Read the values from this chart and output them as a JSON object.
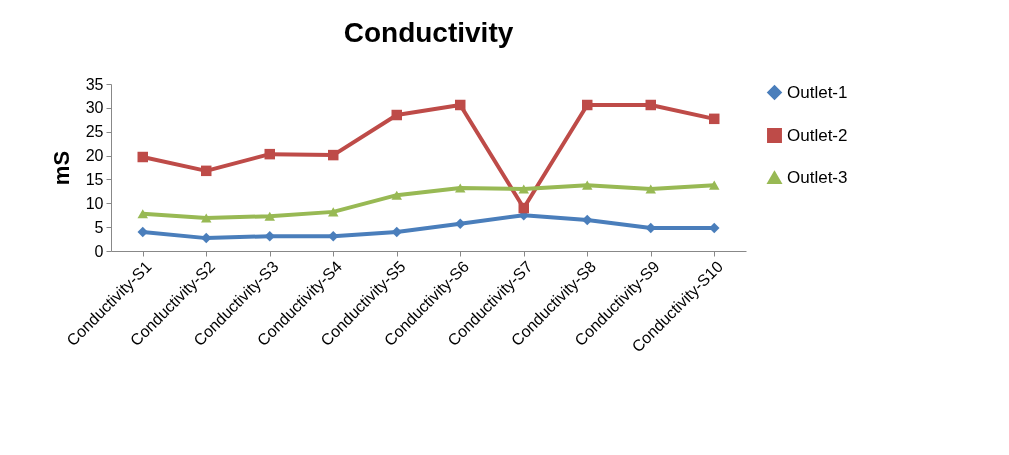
{
  "chart_data": {
    "type": "line",
    "title": "Conductivity",
    "ylabel": "mS",
    "categories": [
      "Conductivity-S1",
      "Conductivity-S2",
      "Conductivity-S3",
      "Conductivity-S4",
      "Conductivity-S5",
      "Conductivity-S6",
      "Conductivity-S7",
      "Conductivity-S8",
      "Conductivity-S9",
      "Conductivity-S10"
    ],
    "series": [
      {
        "name": "Outlet-1",
        "color": "#4a7ebb",
        "marker": "diamond",
        "values": [
          4.0,
          2.7,
          3.1,
          3.1,
          4.0,
          5.7,
          7.5,
          6.5,
          4.8,
          4.8
        ]
      },
      {
        "name": "Outlet-2",
        "color": "#be4b48",
        "marker": "square",
        "values": [
          19.7,
          16.8,
          20.3,
          20.1,
          28.5,
          30.6,
          9.0,
          30.6,
          30.6,
          27.7
        ]
      },
      {
        "name": "Outlet-3",
        "color": "#98b954",
        "marker": "triangle",
        "values": [
          7.8,
          6.9,
          7.3,
          8.2,
          11.7,
          13.2,
          13.0,
          13.8,
          13.0,
          13.8
        ]
      }
    ],
    "ylim": [
      0,
      35
    ],
    "yticks": [
      0,
      5,
      10,
      15,
      20,
      25,
      30,
      35
    ],
    "grid": false,
    "legend": "right",
    "line_style": "solid"
  }
}
